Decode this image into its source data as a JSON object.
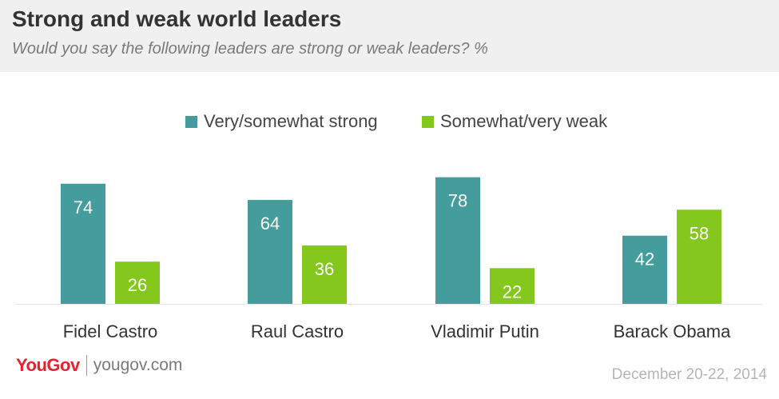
{
  "header": {
    "title": "Strong and weak world leaders",
    "subtitle": "Would you say the following leaders are strong or weak leaders? %"
  },
  "colors": {
    "strong": "#459c9c",
    "weak": "#84c81d",
    "header_bg": "#f0f0f0",
    "brand": "#e8212e"
  },
  "chart_data": {
    "type": "bar",
    "title": "Strong and weak world leaders",
    "subtitle": "Would you say the following leaders are strong or weak leaders? %",
    "categories": [
      "Fidel Castro",
      "Raul Castro",
      "Vladimir Putin",
      "Barack Obama"
    ],
    "series": [
      {
        "name": "Very/somewhat strong",
        "values": [
          74,
          64,
          78,
          42
        ]
      },
      {
        "name": "Somewhat/very weak",
        "values": [
          26,
          36,
          22,
          58
        ]
      }
    ],
    "ylim": [
      0,
      100
    ],
    "grid": false,
    "legend": "top-center",
    "data_labels": true
  },
  "footer": {
    "brand": "YouGov",
    "site": "yougov.com",
    "date": "December 20-22, 2014"
  }
}
